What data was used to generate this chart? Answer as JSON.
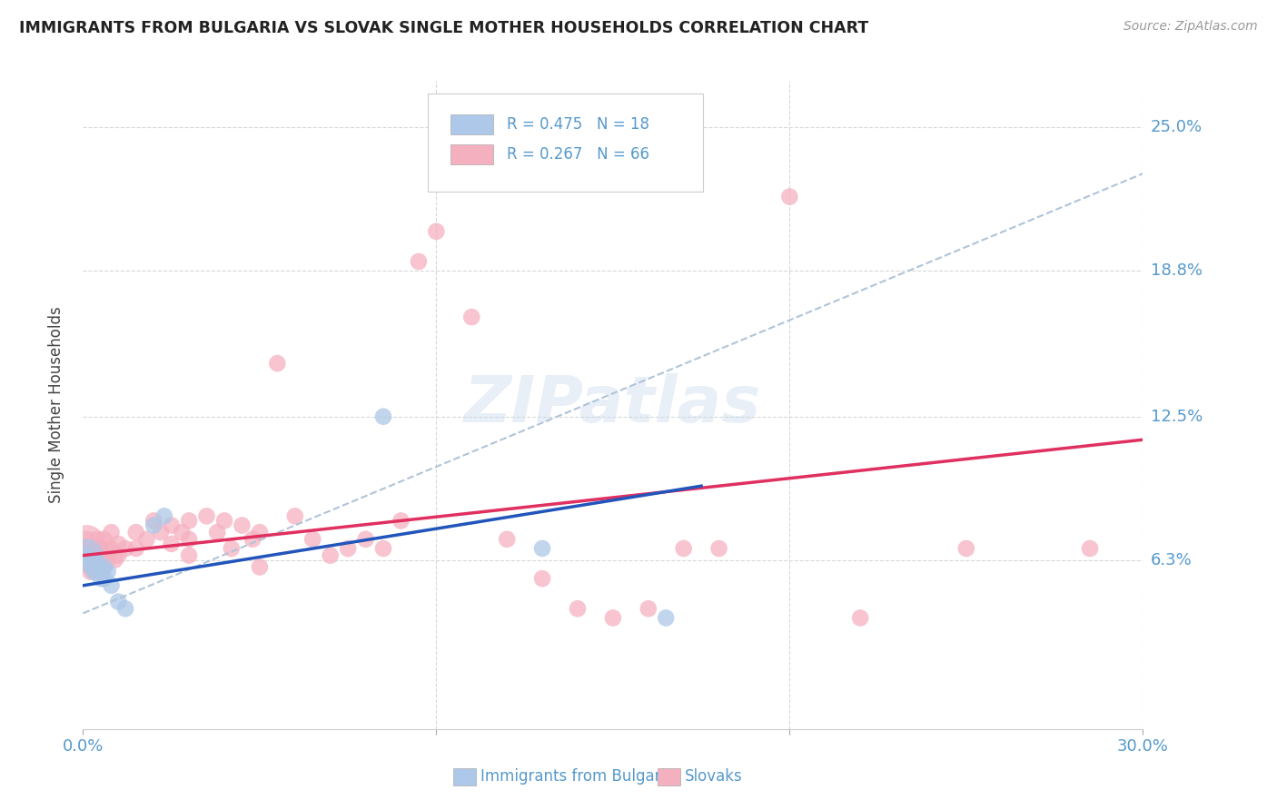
{
  "title": "IMMIGRANTS FROM BULGARIA VS SLOVAK SINGLE MOTHER HOUSEHOLDS CORRELATION CHART",
  "source": "Source: ZipAtlas.com",
  "ylabel": "Single Mother Households",
  "xlim": [
    0.0,
    0.3
  ],
  "ylim": [
    -0.01,
    0.27
  ],
  "ytick_positions": [
    0.063,
    0.125,
    0.188,
    0.25
  ],
  "ytick_labels": [
    "6.3%",
    "12.5%",
    "18.8%",
    "25.0%"
  ],
  "bg_color": "#ffffff",
  "grid_color": "#d8d8d8",
  "bulgaria_color": "#adc8e8",
  "slovakia_color": "#f5b0c0",
  "bulgaria_line_color": "#2255bb",
  "slovakia_line_color": "#e03060",
  "bulgaria_line": [
    [
      0.0,
      0.052
    ],
    [
      0.175,
      0.095
    ]
  ],
  "slovakia_line": [
    [
      0.0,
      0.065
    ],
    [
      0.3,
      0.115
    ]
  ],
  "bulgaria_dashed_line": [
    [
      0.0,
      0.04
    ],
    [
      0.3,
      0.23
    ]
  ],
  "bulgaria_scatter": [
    [
      0.001,
      0.065
    ],
    [
      0.002,
      0.063
    ],
    [
      0.003,
      0.06
    ],
    [
      0.003,
      0.058
    ],
    [
      0.004,
      0.062
    ],
    [
      0.005,
      0.058
    ],
    [
      0.005,
      0.055
    ],
    [
      0.006,
      0.06
    ],
    [
      0.006,
      0.055
    ],
    [
      0.007,
      0.058
    ],
    [
      0.008,
      0.052
    ],
    [
      0.01,
      0.045
    ],
    [
      0.012,
      0.042
    ],
    [
      0.02,
      0.078
    ],
    [
      0.023,
      0.082
    ],
    [
      0.085,
      0.125
    ],
    [
      0.13,
      0.068
    ],
    [
      0.165,
      0.038
    ]
  ],
  "slovakia_scatter": [
    [
      0.001,
      0.072
    ],
    [
      0.001,
      0.068
    ],
    [
      0.002,
      0.065
    ],
    [
      0.002,
      0.06
    ],
    [
      0.002,
      0.058
    ],
    [
      0.003,
      0.068
    ],
    [
      0.003,
      0.063
    ],
    [
      0.003,
      0.058
    ],
    [
      0.004,
      0.072
    ],
    [
      0.004,
      0.065
    ],
    [
      0.004,
      0.06
    ],
    [
      0.005,
      0.068
    ],
    [
      0.005,
      0.063
    ],
    [
      0.005,
      0.058
    ],
    [
      0.006,
      0.072
    ],
    [
      0.006,
      0.065
    ],
    [
      0.006,
      0.06
    ],
    [
      0.007,
      0.068
    ],
    [
      0.007,
      0.063
    ],
    [
      0.008,
      0.075
    ],
    [
      0.008,
      0.068
    ],
    [
      0.009,
      0.063
    ],
    [
      0.01,
      0.07
    ],
    [
      0.01,
      0.065
    ],
    [
      0.012,
      0.068
    ],
    [
      0.015,
      0.075
    ],
    [
      0.015,
      0.068
    ],
    [
      0.018,
      0.072
    ],
    [
      0.02,
      0.08
    ],
    [
      0.022,
      0.075
    ],
    [
      0.025,
      0.078
    ],
    [
      0.025,
      0.07
    ],
    [
      0.028,
      0.075
    ],
    [
      0.03,
      0.08
    ],
    [
      0.03,
      0.072
    ],
    [
      0.03,
      0.065
    ],
    [
      0.035,
      0.082
    ],
    [
      0.038,
      0.075
    ],
    [
      0.04,
      0.08
    ],
    [
      0.042,
      0.068
    ],
    [
      0.045,
      0.078
    ],
    [
      0.048,
      0.072
    ],
    [
      0.05,
      0.075
    ],
    [
      0.05,
      0.06
    ],
    [
      0.055,
      0.148
    ],
    [
      0.06,
      0.082
    ],
    [
      0.065,
      0.072
    ],
    [
      0.07,
      0.065
    ],
    [
      0.075,
      0.068
    ],
    [
      0.08,
      0.072
    ],
    [
      0.085,
      0.068
    ],
    [
      0.09,
      0.08
    ],
    [
      0.095,
      0.192
    ],
    [
      0.1,
      0.205
    ],
    [
      0.11,
      0.168
    ],
    [
      0.12,
      0.072
    ],
    [
      0.13,
      0.055
    ],
    [
      0.14,
      0.042
    ],
    [
      0.15,
      0.038
    ],
    [
      0.16,
      0.042
    ],
    [
      0.17,
      0.068
    ],
    [
      0.18,
      0.068
    ],
    [
      0.2,
      0.22
    ],
    [
      0.22,
      0.038
    ],
    [
      0.25,
      0.068
    ],
    [
      0.285,
      0.068
    ]
  ]
}
